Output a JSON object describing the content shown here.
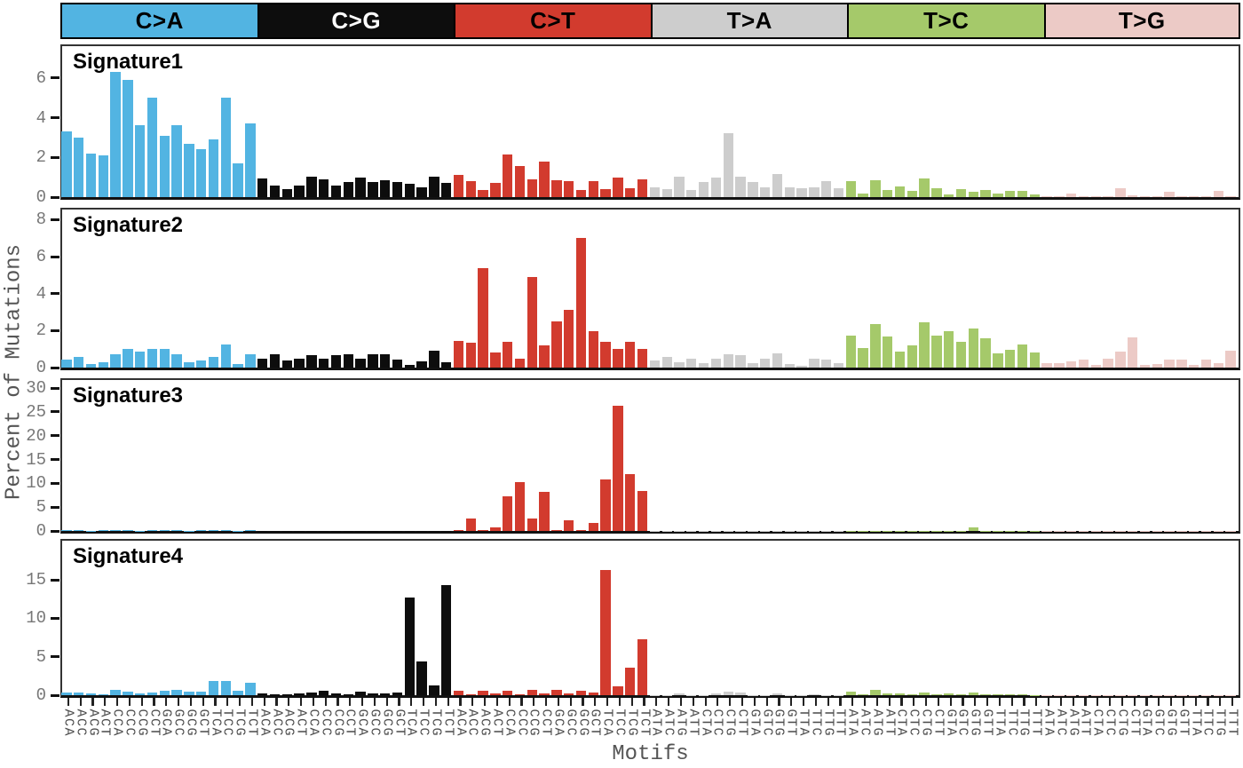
{
  "chart_data": {
    "type": "bar",
    "xlabel": "Motifs",
    "ylabel": "Percent of Mutations",
    "grid": false,
    "legend_position": "top",
    "categories": [
      "ACA",
      "ACC",
      "ACG",
      "ACT",
      "CCA",
      "CCC",
      "CCG",
      "CCT",
      "GCA",
      "GCC",
      "GCG",
      "GCT",
      "TCA",
      "TCC",
      "TCG",
      "TCT",
      "ACA",
      "ACC",
      "ACG",
      "ACT",
      "CCA",
      "CCC",
      "CCG",
      "CCT",
      "GCA",
      "GCC",
      "GCG",
      "GCT",
      "TCA",
      "TCC",
      "TCG",
      "TCT",
      "ACA",
      "ACC",
      "ACG",
      "ACT",
      "CCA",
      "CCC",
      "CCG",
      "CCT",
      "GCA",
      "GCC",
      "GCG",
      "GCT",
      "TCA",
      "TCC",
      "TCG",
      "TCT",
      "ATA",
      "ATC",
      "ATG",
      "ATT",
      "CTA",
      "CTC",
      "CTG",
      "CTT",
      "GTA",
      "GTC",
      "GTG",
      "GTT",
      "TTA",
      "TTC",
      "TTG",
      "TTT",
      "ATA",
      "ATC",
      "ATG",
      "ATT",
      "CTA",
      "CTC",
      "CTG",
      "CTT",
      "GTA",
      "GTC",
      "GTG",
      "GTT",
      "TTA",
      "TTC",
      "TTG",
      "TTT",
      "ATA",
      "ATC",
      "ATG",
      "ATT",
      "CTA",
      "CTC",
      "CTG",
      "CTT",
      "GTA",
      "GTC",
      "GTG",
      "GTT",
      "TTA",
      "TTC",
      "TTG",
      "TTT"
    ],
    "groups": [
      {
        "label": "C>A",
        "color": "#52b4e2",
        "text_color": "#000000"
      },
      {
        "label": "C>G",
        "color": "#0d0d0d",
        "text_color": "#ffffff"
      },
      {
        "label": "C>T",
        "color": "#d23b2e",
        "text_color": "#000000"
      },
      {
        "label": "T>A",
        "color": "#cdcdcd",
        "text_color": "#000000"
      },
      {
        "label": "T>C",
        "color": "#a5c96a",
        "text_color": "#000000"
      },
      {
        "label": "T>G",
        "color": "#eccac6",
        "text_color": "#000000"
      }
    ],
    "signatures": [
      {
        "name": "Signature1",
        "ylim": [
          0,
          7.6
        ],
        "yticks": [
          0,
          2,
          4,
          6
        ],
        "values": [
          3.3,
          3.0,
          2.2,
          2.1,
          6.3,
          5.9,
          3.6,
          5.0,
          3.1,
          3.6,
          2.7,
          2.4,
          2.9,
          5.0,
          1.7,
          3.7,
          0.95,
          0.6,
          0.4,
          0.6,
          1.05,
          0.9,
          0.6,
          0.75,
          1.0,
          0.75,
          0.85,
          0.75,
          0.65,
          0.5,
          1.05,
          0.7,
          1.1,
          0.8,
          0.35,
          0.7,
          2.15,
          1.55,
          0.9,
          1.8,
          0.85,
          0.8,
          0.35,
          0.8,
          0.4,
          1.0,
          0.45,
          0.9,
          0.5,
          0.4,
          1.05,
          0.35,
          0.75,
          1.0,
          3.2,
          1.05,
          0.75,
          0.5,
          1.15,
          0.5,
          0.45,
          0.5,
          0.8,
          0.45,
          0.8,
          0.2,
          0.85,
          0.35,
          0.55,
          0.3,
          0.95,
          0.45,
          0.15,
          0.4,
          0.25,
          0.35,
          0.2,
          0.3,
          0.3,
          0.15,
          0.05,
          0.05,
          0.2,
          0.05,
          0.05,
          0.05,
          0.45,
          0.1,
          0.05,
          0.05,
          0.25,
          0.05,
          0.05,
          0.05,
          0.3,
          0.05
        ]
      },
      {
        "name": "Signature2",
        "ylim": [
          0,
          8.55
        ],
        "yticks": [
          0,
          2,
          4,
          6,
          8
        ],
        "values": [
          0.45,
          0.6,
          0.2,
          0.3,
          0.7,
          1.0,
          0.85,
          1.0,
          1.0,
          0.7,
          0.3,
          0.4,
          0.6,
          1.25,
          0.2,
          0.7,
          0.5,
          0.7,
          0.4,
          0.5,
          0.65,
          0.5,
          0.65,
          0.7,
          0.5,
          0.7,
          0.7,
          0.45,
          0.15,
          0.35,
          0.9,
          0.3,
          1.45,
          1.35,
          5.4,
          0.8,
          1.4,
          0.5,
          4.9,
          1.2,
          2.5,
          3.1,
          7.0,
          1.95,
          1.4,
          1.0,
          1.4,
          1.0,
          0.4,
          0.6,
          0.3,
          0.5,
          0.25,
          0.5,
          0.7,
          0.65,
          0.25,
          0.5,
          0.75,
          0.2,
          0.1,
          0.5,
          0.45,
          0.25,
          1.75,
          1.05,
          2.35,
          1.7,
          0.85,
          1.2,
          2.45,
          1.75,
          1.95,
          1.4,
          2.1,
          1.6,
          0.75,
          0.95,
          1.25,
          0.8,
          0.25,
          0.25,
          0.35,
          0.45,
          0.15,
          0.5,
          0.85,
          1.65,
          0.15,
          0.2,
          0.45,
          0.45,
          0.15,
          0.45,
          0.25,
          0.9
        ]
      },
      {
        "name": "Signature3",
        "ylim": [
          0,
          31.7
        ],
        "yticks": [
          0,
          5,
          10,
          15,
          20,
          25,
          30
        ],
        "values": [
          0.1,
          0.1,
          0.05,
          0.1,
          0.1,
          0.1,
          0.05,
          0.1,
          0.1,
          0.1,
          0.05,
          0.1,
          0.1,
          0.15,
          0.05,
          0.1,
          0.05,
          0.05,
          0.05,
          0.05,
          0.05,
          0.05,
          0.05,
          0.05,
          0.05,
          0.05,
          0.05,
          0.05,
          0.05,
          0.05,
          0.05,
          0.05,
          0.1,
          2.6,
          0.1,
          0.7,
          7.2,
          10.2,
          2.6,
          8.2,
          0.1,
          2.3,
          0.1,
          1.6,
          10.9,
          26.3,
          11.9,
          8.4,
          0.05,
          0.05,
          0.05,
          0.05,
          0.05,
          0.05,
          0.05,
          0.05,
          0.05,
          0.05,
          0.05,
          0.05,
          0.05,
          0.05,
          0.05,
          0.05,
          0.05,
          0.05,
          0.05,
          0.05,
          0.05,
          0.05,
          0.05,
          0.05,
          0.05,
          0.05,
          0.8,
          0.05,
          0.05,
          0.05,
          0.05,
          0.05,
          0.03,
          0.03,
          0.03,
          0.03,
          0.03,
          0.03,
          0.03,
          0.03,
          0.03,
          0.03,
          0.03,
          0.03,
          0.03,
          0.03,
          0.03,
          0.03
        ]
      },
      {
        "name": "Signature4",
        "ylim": [
          0,
          20.1
        ],
        "yticks": [
          0,
          5,
          10,
          15
        ],
        "values": [
          0.4,
          0.4,
          0.2,
          0.15,
          0.75,
          0.45,
          0.2,
          0.3,
          0.55,
          0.65,
          0.45,
          0.45,
          1.9,
          1.9,
          0.6,
          1.6,
          0.25,
          0.1,
          0.1,
          0.2,
          0.3,
          0.55,
          0.2,
          0.12,
          0.45,
          0.2,
          0.25,
          0.3,
          12.7,
          4.4,
          1.3,
          14.3,
          0.55,
          0.1,
          0.55,
          0.2,
          0.55,
          0.1,
          0.7,
          0.2,
          0.7,
          0.2,
          0.55,
          0.3,
          16.3,
          1.2,
          3.6,
          7.3,
          0.05,
          0.05,
          0.25,
          0.05,
          0.05,
          0.2,
          0.45,
          0.35,
          0.05,
          0.05,
          0.2,
          0.05,
          0.05,
          0.1,
          0.05,
          0.05,
          0.45,
          0.1,
          0.65,
          0.25,
          0.25,
          0.1,
          0.4,
          0.1,
          0.25,
          0.1,
          0.3,
          0.1,
          0.15,
          0.15,
          0.15,
          0.05,
          0.03,
          0.03,
          0.03,
          0.03,
          0.03,
          0.03,
          0.03,
          0.03,
          0.03,
          0.03,
          0.03,
          0.03,
          0.03,
          0.03,
          0.03,
          0.03
        ]
      }
    ]
  }
}
